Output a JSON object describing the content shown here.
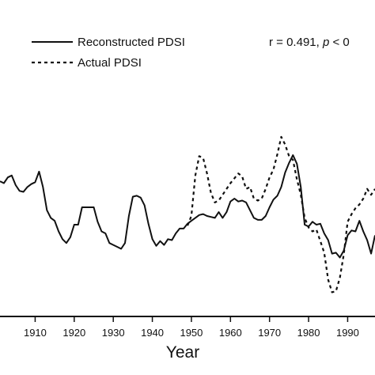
{
  "chart_data": {
    "type": "line",
    "xlabel": "Year",
    "ylabel": "",
    "xlim": [
      1901,
      1997
    ],
    "ylim": [
      -5.5,
      7
    ],
    "xticks": [
      1910,
      1920,
      1930,
      1940,
      1950,
      1960,
      1970,
      1980,
      1990
    ],
    "tick_labels": [
      "1910",
      "1920",
      "1930",
      "1940",
      "1950",
      "1960",
      "1970",
      "1980",
      "1990"
    ],
    "annotation": {
      "r_text": "r = 0.491, ",
      "p_symbol": "p",
      "p_text": " < 0"
    },
    "legend": {
      "placement": "top-left"
    },
    "series": [
      {
        "name": "Reconstructed PDSI",
        "style": "solid",
        "color": "#111111",
        "points": [
          [
            1901,
            1.3
          ],
          [
            1902,
            1.2
          ],
          [
            1903,
            1.5
          ],
          [
            1904,
            1.6
          ],
          [
            1905,
            1.1
          ],
          [
            1906,
            0.8
          ],
          [
            1907,
            0.75
          ],
          [
            1908,
            1.0
          ],
          [
            1909,
            1.15
          ],
          [
            1910,
            1.25
          ],
          [
            1911,
            1.8
          ],
          [
            1912,
            1.0
          ],
          [
            1913,
            -0.2
          ],
          [
            1914,
            -0.6
          ],
          [
            1915,
            -0.75
          ],
          [
            1916,
            -1.3
          ],
          [
            1917,
            -1.7
          ],
          [
            1918,
            -1.9
          ],
          [
            1919,
            -1.6
          ],
          [
            1920,
            -0.95
          ],
          [
            1921,
            -0.95
          ],
          [
            1922,
            -0.05
          ],
          [
            1923,
            -0.05
          ],
          [
            1924,
            -0.05
          ],
          [
            1925,
            -0.05
          ],
          [
            1926,
            -0.8
          ],
          [
            1927,
            -1.3
          ],
          [
            1928,
            -1.4
          ],
          [
            1929,
            -1.9
          ],
          [
            1930,
            -2.0
          ],
          [
            1931,
            -2.1
          ],
          [
            1932,
            -2.2
          ],
          [
            1933,
            -1.9
          ],
          [
            1934,
            -0.5
          ],
          [
            1935,
            0.5
          ],
          [
            1936,
            0.55
          ],
          [
            1937,
            0.45
          ],
          [
            1938,
            0.05
          ],
          [
            1939,
            -0.9
          ],
          [
            1940,
            -1.7
          ],
          [
            1941,
            -2.05
          ],
          [
            1942,
            -1.8
          ],
          [
            1943,
            -2.0
          ],
          [
            1944,
            -1.7
          ],
          [
            1945,
            -1.75
          ],
          [
            1946,
            -1.4
          ],
          [
            1947,
            -1.15
          ],
          [
            1948,
            -1.15
          ],
          [
            1949,
            -0.9
          ],
          [
            1950,
            -0.75
          ],
          [
            1951,
            -0.6
          ],
          [
            1952,
            -0.45
          ],
          [
            1953,
            -0.4
          ],
          [
            1954,
            -0.5
          ],
          [
            1955,
            -0.55
          ],
          [
            1956,
            -0.6
          ],
          [
            1957,
            -0.3
          ],
          [
            1958,
            -0.6
          ],
          [
            1959,
            -0.3
          ],
          [
            1960,
            0.25
          ],
          [
            1961,
            0.4
          ],
          [
            1962,
            0.25
          ],
          [
            1963,
            0.3
          ],
          [
            1964,
            0.2
          ],
          [
            1965,
            -0.2
          ],
          [
            1966,
            -0.6
          ],
          [
            1967,
            -0.7
          ],
          [
            1968,
            -0.7
          ],
          [
            1969,
            -0.5
          ],
          [
            1970,
            -0.05
          ],
          [
            1971,
            0.35
          ],
          [
            1972,
            0.55
          ],
          [
            1973,
            1.0
          ],
          [
            1974,
            1.75
          ],
          [
            1975,
            2.25
          ],
          [
            1976,
            2.65
          ],
          [
            1977,
            2.2
          ],
          [
            1978,
            1.0
          ],
          [
            1979,
            -0.95
          ],
          [
            1980,
            -1.05
          ],
          [
            1981,
            -0.8
          ],
          [
            1982,
            -0.95
          ],
          [
            1983,
            -0.9
          ],
          [
            1984,
            -1.4
          ],
          [
            1985,
            -1.75
          ],
          [
            1986,
            -2.45
          ],
          [
            1987,
            -2.4
          ],
          [
            1988,
            -2.65
          ],
          [
            1989,
            -2.3
          ],
          [
            1990,
            -1.5
          ],
          [
            1991,
            -1.25
          ],
          [
            1992,
            -1.3
          ],
          [
            1993,
            -0.75
          ],
          [
            1994,
            -1.3
          ],
          [
            1995,
            -1.75
          ],
          [
            1996,
            -2.45
          ],
          [
            1997,
            -1.5
          ]
        ]
      },
      {
        "name": "Actual PDSI",
        "style": "dotted",
        "color": "#111111",
        "points": [
          [
            1949,
            -1.0
          ],
          [
            1950,
            -0.5
          ],
          [
            1951,
            1.6
          ],
          [
            1952,
            2.6
          ],
          [
            1953,
            2.5
          ],
          [
            1954,
            1.7
          ],
          [
            1955,
            0.7
          ],
          [
            1956,
            0.2
          ],
          [
            1957,
            0.3
          ],
          [
            1958,
            0.6
          ],
          [
            1959,
            0.9
          ],
          [
            1960,
            1.2
          ],
          [
            1961,
            1.45
          ],
          [
            1962,
            1.7
          ],
          [
            1963,
            1.55
          ],
          [
            1964,
            0.9
          ],
          [
            1965,
            1.0
          ],
          [
            1966,
            0.4
          ],
          [
            1967,
            0.3
          ],
          [
            1968,
            0.4
          ],
          [
            1969,
            0.9
          ],
          [
            1970,
            1.5
          ],
          [
            1971,
            1.9
          ],
          [
            1972,
            2.7
          ],
          [
            1973,
            3.6
          ],
          [
            1974,
            3.2
          ],
          [
            1975,
            2.6
          ],
          [
            1976,
            2.4
          ],
          [
            1977,
            1.4
          ],
          [
            1978,
            0.6
          ],
          [
            1979,
            -0.6
          ],
          [
            1980,
            -1.1
          ],
          [
            1981,
            -1.3
          ],
          [
            1982,
            -1.2
          ],
          [
            1983,
            -1.8
          ],
          [
            1984,
            -2.4
          ],
          [
            1985,
            -3.8
          ],
          [
            1986,
            -4.45
          ],
          [
            1987,
            -4.4
          ],
          [
            1988,
            -3.7
          ],
          [
            1989,
            -2.5
          ],
          [
            1990,
            -0.8
          ],
          [
            1991,
            -0.4
          ],
          [
            1992,
            -0.1
          ],
          [
            1993,
            0.1
          ],
          [
            1994,
            0.4
          ],
          [
            1995,
            0.9
          ],
          [
            1996,
            0.6
          ],
          [
            1997,
            0.9
          ]
        ]
      }
    ]
  }
}
